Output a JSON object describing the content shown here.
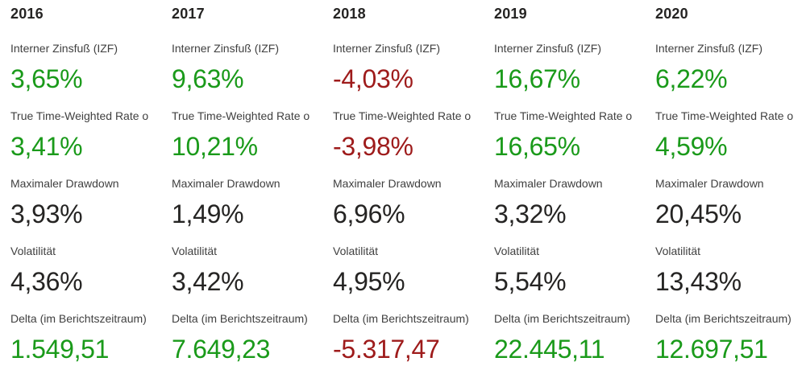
{
  "colors": {
    "positive": "#1a9a1a",
    "negative": "#9e1b1b",
    "neutral": "#252423",
    "label_gray": "#404040",
    "background": "#ffffff"
  },
  "metrics": [
    {
      "label": "Interner Zinsfuß (IZF)"
    },
    {
      "label": "True Time-Weighted Rate o"
    },
    {
      "label": "Maximaler Drawdown"
    },
    {
      "label": "Volatilität"
    },
    {
      "label": "Delta (im Berichtszeitraum)"
    }
  ],
  "columns": [
    {
      "year": "2016",
      "values": [
        {
          "text": "3,65%",
          "tone": "positive"
        },
        {
          "text": "3,41%",
          "tone": "positive"
        },
        {
          "text": "3,93%",
          "tone": "neutral"
        },
        {
          "text": "4,36%",
          "tone": "neutral"
        },
        {
          "text": "1.549,51",
          "tone": "positive"
        }
      ]
    },
    {
      "year": "2017",
      "values": [
        {
          "text": "9,63%",
          "tone": "positive"
        },
        {
          "text": "10,21%",
          "tone": "positive"
        },
        {
          "text": "1,49%",
          "tone": "neutral"
        },
        {
          "text": "3,42%",
          "tone": "neutral"
        },
        {
          "text": "7.649,23",
          "tone": "positive"
        }
      ]
    },
    {
      "year": "2018",
      "values": [
        {
          "text": "-4,03%",
          "tone": "negative"
        },
        {
          "text": "-3,98%",
          "tone": "negative"
        },
        {
          "text": "6,96%",
          "tone": "neutral"
        },
        {
          "text": "4,95%",
          "tone": "neutral"
        },
        {
          "text": "-5.317,47",
          "tone": "negative"
        }
      ]
    },
    {
      "year": "2019",
      "values": [
        {
          "text": "16,67%",
          "tone": "positive"
        },
        {
          "text": "16,65%",
          "tone": "positive"
        },
        {
          "text": "3,32%",
          "tone": "neutral"
        },
        {
          "text": "5,54%",
          "tone": "neutral"
        },
        {
          "text": "22.445,11",
          "tone": "positive"
        }
      ]
    },
    {
      "year": "2020",
      "values": [
        {
          "text": "6,22%",
          "tone": "positive"
        },
        {
          "text": "4,59%",
          "tone": "positive"
        },
        {
          "text": "20,45%",
          "tone": "neutral"
        },
        {
          "text": "13,43%",
          "tone": "neutral"
        },
        {
          "text": "12.697,51",
          "tone": "positive"
        }
      ]
    }
  ],
  "chart_data": {
    "type": "table",
    "categories": [
      "2016",
      "2017",
      "2018",
      "2019",
      "2020"
    ],
    "series": [
      {
        "name": "Interner Zinsfuß (IZF)",
        "values": [
          "3,65%",
          "9,63%",
          "-4,03%",
          "16,67%",
          "6,22%"
        ],
        "numeric": [
          3.65,
          9.63,
          -4.03,
          16.67,
          6.22
        ]
      },
      {
        "name": "True Time-Weighted Rate o",
        "values": [
          "3,41%",
          "10,21%",
          "-3,98%",
          "16,65%",
          "4,59%"
        ],
        "numeric": [
          3.41,
          10.21,
          -3.98,
          16.65,
          4.59
        ]
      },
      {
        "name": "Maximaler Drawdown",
        "values": [
          "3,93%",
          "1,49%",
          "6,96%",
          "3,32%",
          "20,45%"
        ],
        "numeric": [
          3.93,
          1.49,
          6.96,
          3.32,
          20.45
        ]
      },
      {
        "name": "Volatilität",
        "values": [
          "4,36%",
          "3,42%",
          "4,95%",
          "5,54%",
          "13,43%"
        ],
        "numeric": [
          4.36,
          3.42,
          4.95,
          5.54,
          13.43
        ]
      },
      {
        "name": "Delta (im Berichtszeitraum)",
        "values": [
          "1.549,51",
          "7.649,23",
          "-5.317,47",
          "22.445,11",
          "12.697,51"
        ],
        "numeric": [
          1549.51,
          7649.23,
          -5317.47,
          22445.11,
          12697.51
        ]
      }
    ],
    "legend_position": "none",
    "grid": false,
    "title": ""
  }
}
